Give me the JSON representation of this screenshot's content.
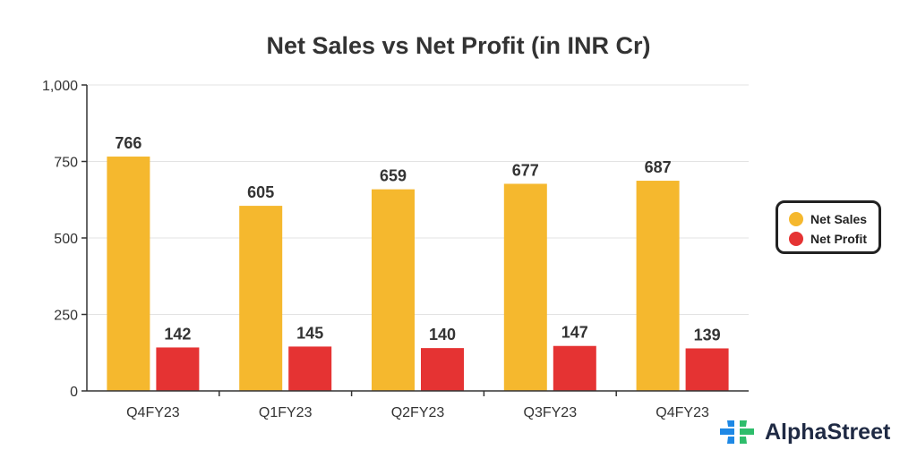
{
  "chart_data": {
    "type": "bar",
    "title": "Net Sales vs Net Profit (in INR Cr)",
    "categories": [
      "Q4FY23",
      "Q1FY23",
      "Q2FY23",
      "Q3FY23",
      "Q4FY23"
    ],
    "series": [
      {
        "name": "Net Sales",
        "values": [
          766,
          605,
          659,
          677,
          687
        ],
        "color": "#F5B82E"
      },
      {
        "name": "Net Profit",
        "values": [
          142,
          145,
          140,
          147,
          139
        ],
        "color": "#E53333"
      }
    ],
    "ylim": [
      0,
      1000
    ],
    "yticks": [
      0,
      250,
      500,
      750,
      1000
    ],
    "ytick_labels": [
      "0",
      "250",
      "500",
      "750",
      "1,000"
    ],
    "xlabel": "",
    "ylabel": "",
    "grid": true,
    "legend_position": "right"
  },
  "legend": {
    "items": [
      {
        "label": "Net Sales",
        "color": "#F5B82E"
      },
      {
        "label": "Net Profit",
        "color": "#E53333"
      }
    ]
  },
  "brand": {
    "name": "AlphaStreet",
    "logo_icon": "alphastreet-logo-icon",
    "logo_colors": [
      "#1E88E5",
      "#2EBD6B"
    ]
  }
}
